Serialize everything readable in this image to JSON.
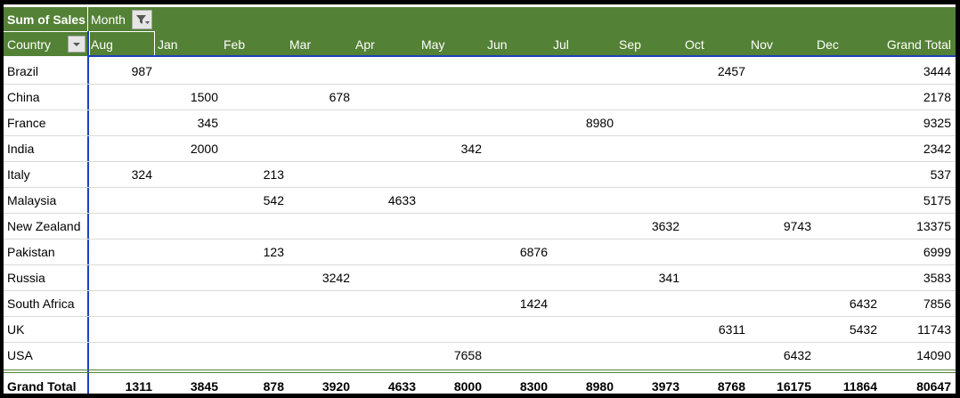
{
  "pivot": {
    "value_field": "Sum of Sales",
    "column_field": "Month",
    "row_field": "Country",
    "columns": [
      "Aug",
      "Jan",
      "Feb",
      "Mar",
      "Apr",
      "May",
      "Jun",
      "Jul",
      "Sep",
      "Oct",
      "Nov",
      "Dec"
    ],
    "total_label": "Grand Total",
    "rows": [
      {
        "label": "Brazil",
        "cells": [
          987,
          null,
          null,
          null,
          null,
          null,
          null,
          null,
          null,
          2457,
          null,
          null
        ],
        "total": 3444
      },
      {
        "label": "China",
        "cells": [
          null,
          1500,
          null,
          678,
          null,
          null,
          null,
          null,
          null,
          null,
          null,
          null
        ],
        "total": 2178
      },
      {
        "label": "France",
        "cells": [
          null,
          345,
          null,
          null,
          null,
          null,
          null,
          8980,
          null,
          null,
          null,
          null
        ],
        "total": 9325
      },
      {
        "label": "India",
        "cells": [
          null,
          2000,
          null,
          null,
          null,
          342,
          null,
          null,
          null,
          null,
          null,
          null
        ],
        "total": 2342
      },
      {
        "label": "Italy",
        "cells": [
          324,
          null,
          213,
          null,
          null,
          null,
          null,
          null,
          null,
          null,
          null,
          null
        ],
        "total": 537
      },
      {
        "label": "Malaysia",
        "cells": [
          null,
          null,
          542,
          null,
          4633,
          null,
          null,
          null,
          null,
          null,
          null,
          null
        ],
        "total": 5175
      },
      {
        "label": "New Zealand",
        "cells": [
          null,
          null,
          null,
          null,
          null,
          null,
          null,
          null,
          3632,
          null,
          9743,
          null
        ],
        "total": 13375
      },
      {
        "label": "Pakistan",
        "cells": [
          null,
          null,
          123,
          null,
          null,
          null,
          6876,
          null,
          null,
          null,
          null,
          null
        ],
        "total": 6999
      },
      {
        "label": "Russia",
        "cells": [
          null,
          null,
          null,
          3242,
          null,
          null,
          null,
          null,
          341,
          null,
          null,
          null
        ],
        "total": 3583
      },
      {
        "label": "South Africa",
        "cells": [
          null,
          null,
          null,
          null,
          null,
          null,
          1424,
          null,
          null,
          null,
          null,
          6432
        ],
        "total": 7856
      },
      {
        "label": "UK",
        "cells": [
          null,
          null,
          null,
          null,
          null,
          null,
          null,
          null,
          null,
          6311,
          null,
          5432
        ],
        "total": 11743
      },
      {
        "label": "USA",
        "cells": [
          null,
          null,
          null,
          null,
          null,
          7658,
          null,
          null,
          null,
          null,
          6432,
          null
        ],
        "total": 14090
      }
    ],
    "grand_total_row": {
      "label": "Grand Total",
      "cells": [
        1311,
        3845,
        878,
        3920,
        4633,
        8000,
        8300,
        8980,
        3973,
        8768,
        16175,
        11864
      ],
      "total": 80647
    }
  }
}
